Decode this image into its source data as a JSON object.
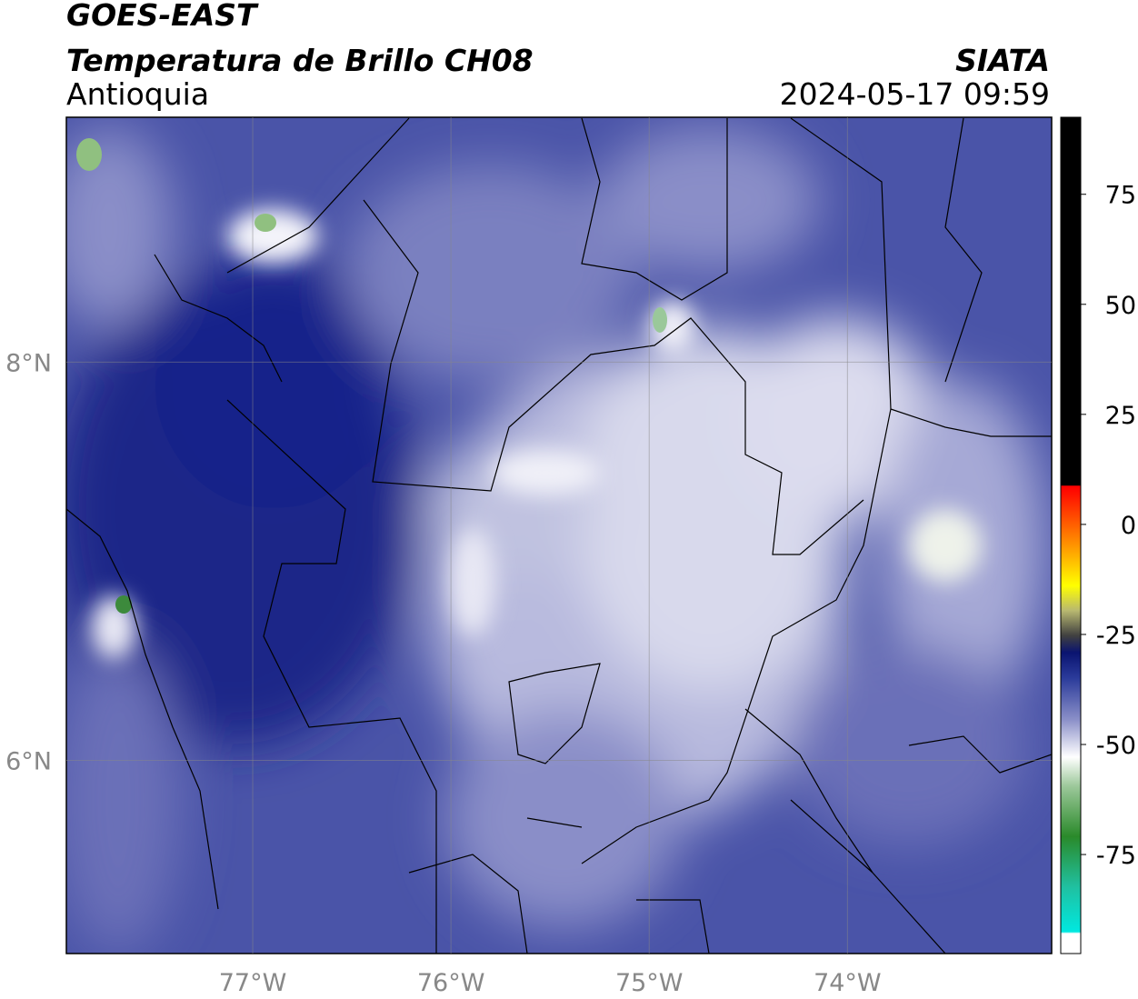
{
  "header": {
    "title": "GOES-EAST",
    "subtitle": "Temperatura de Brillo CH08",
    "region": "Antioquia",
    "source": "SIATA",
    "timestamp": "2024-05-17 09:59"
  },
  "map": {
    "xlim": [
      -77.94,
      -72.97
    ],
    "ylim": [
      5.03,
      9.23
    ],
    "xticks": [
      {
        "value": -77,
        "label": "77°W"
      },
      {
        "value": -76,
        "label": "76°W"
      },
      {
        "value": -75,
        "label": "75°W"
      },
      {
        "value": -74,
        "label": "74°W"
      }
    ],
    "yticks": [
      {
        "value": 8,
        "label": "8°N"
      },
      {
        "value": 6,
        "label": "6°N"
      }
    ]
  },
  "colorbar": {
    "lim": [
      -97.5,
      92.5
    ],
    "ticks": [
      75,
      50,
      25,
      0,
      -25,
      -50,
      -75
    ]
  }
}
